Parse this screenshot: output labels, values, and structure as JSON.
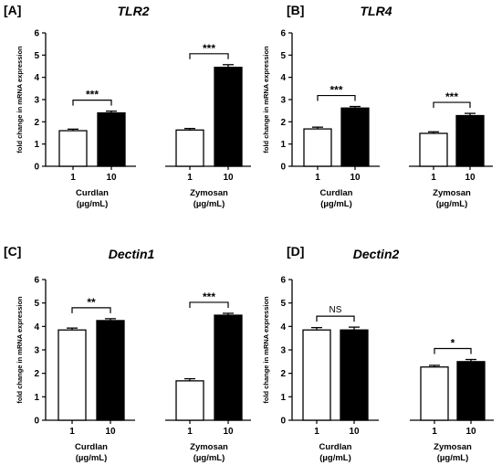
{
  "chart_data": [
    {
      "type": "bar",
      "panel": "[A]",
      "title": "TLR2",
      "ylabel": "fold change in mRNA expression",
      "ylim": [
        0,
        6
      ],
      "yticks": [
        "0",
        "1",
        "2",
        "3",
        "4",
        "5",
        "6"
      ],
      "groups": [
        {
          "name_line1": "Curdlan",
          "name_line2": "(µg/mL)",
          "categories": [
            "1",
            "10"
          ],
          "values": [
            1.6,
            2.4
          ],
          "errors": [
            0.07,
            0.08
          ],
          "significance": "***"
        },
        {
          "name_line1": "Zymosan",
          "name_line2": "(µg/mL)",
          "categories": [
            "1",
            "10"
          ],
          "values": [
            1.63,
            4.45
          ],
          "errors": [
            0.07,
            0.12
          ],
          "significance": "***"
        }
      ],
      "series_colors": [
        "#ffffff",
        "#000000"
      ]
    },
    {
      "type": "bar",
      "panel": "[B]",
      "title": "TLR4",
      "ylabel": "fold change in mRNA expression",
      "ylim": [
        0,
        6
      ],
      "yticks": [
        "0",
        "1",
        "2",
        "3",
        "4",
        "5",
        "6"
      ],
      "groups": [
        {
          "name_line1": "Curdlan",
          "name_line2": "(µg/mL)",
          "categories": [
            "1",
            "10"
          ],
          "values": [
            1.68,
            2.62
          ],
          "errors": [
            0.08,
            0.07
          ],
          "significance": "***"
        },
        {
          "name_line1": "Zymosan",
          "name_line2": "(µg/mL)",
          "categories": [
            "1",
            "10"
          ],
          "values": [
            1.48,
            2.28
          ],
          "errors": [
            0.07,
            0.1
          ],
          "significance": "***"
        }
      ],
      "series_colors": [
        "#ffffff",
        "#000000"
      ]
    },
    {
      "type": "bar",
      "panel": "[C]",
      "title": "Dectin1",
      "ylabel": "fold change in mRNA expression",
      "ylim": [
        0,
        6
      ],
      "yticks": [
        "0",
        "1",
        "2",
        "3",
        "4",
        "5",
        "6"
      ],
      "groups": [
        {
          "name_line1": "Curdlan",
          "name_line2": "(µg/mL)",
          "categories": [
            "1",
            "10"
          ],
          "values": [
            3.85,
            4.25
          ],
          "errors": [
            0.08,
            0.08
          ],
          "significance": "**"
        },
        {
          "name_line1": "Zymosan",
          "name_line2": "(µg/mL)",
          "categories": [
            "1",
            "10"
          ],
          "values": [
            1.68,
            4.48
          ],
          "errors": [
            0.09,
            0.08
          ],
          "significance": "***"
        }
      ],
      "series_colors": [
        "#ffffff",
        "#000000"
      ]
    },
    {
      "type": "bar",
      "panel": "[D]",
      "title": "Dectin2",
      "ylabel": "fold change in mRNA expression",
      "ylim": [
        0,
        6
      ],
      "yticks": [
        "0",
        "1",
        "2",
        "3",
        "4",
        "5",
        "6"
      ],
      "groups": [
        {
          "name_line1": "Curdlan",
          "name_line2": "(µg/mL)",
          "categories": [
            "1",
            "10"
          ],
          "values": [
            3.85,
            3.85
          ],
          "errors": [
            0.1,
            0.12
          ],
          "significance": "NS"
        },
        {
          "name_line1": "Zymosan",
          "name_line2": "(µg/mL)",
          "categories": [
            "1",
            "10"
          ],
          "values": [
            2.27,
            2.5
          ],
          "errors": [
            0.07,
            0.09
          ],
          "significance": "*"
        }
      ],
      "series_colors": [
        "#ffffff",
        "#000000"
      ]
    }
  ]
}
